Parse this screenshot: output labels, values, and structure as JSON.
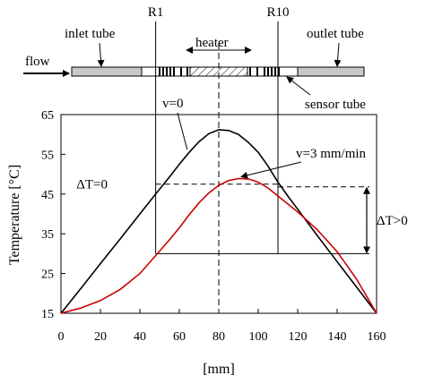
{
  "chart_data": {
    "type": "line",
    "xlabel": "[mm]",
    "ylabel": "Temperature [°C]",
    "xlim": [
      0,
      160
    ],
    "ylim": [
      15,
      65
    ],
    "x_ticks": [
      0,
      20,
      40,
      60,
      80,
      100,
      120,
      140,
      160
    ],
    "y_ticks": [
      15,
      25,
      35,
      45,
      55,
      65
    ],
    "series": [
      {
        "name": "v=0",
        "color": "#000000",
        "x": [
          0,
          10,
          20,
          30,
          40,
          48,
          55,
          60,
          65,
          70,
          75,
          80,
          85,
          90,
          95,
          100,
          105,
          110,
          115,
          120,
          130,
          140,
          150,
          160
        ],
        "y": [
          15,
          21.2,
          27.5,
          33.7,
          40,
          45,
          49.3,
          52.5,
          55.5,
          58.2,
          60.2,
          61.2,
          61,
          60,
          58,
          55.5,
          52,
          48,
          44.5,
          41.2,
          34.5,
          28,
          21.5,
          15
        ]
      },
      {
        "name": "v=3 mm/min",
        "color": "#cc0000",
        "x": [
          0,
          10,
          20,
          30,
          40,
          48,
          55,
          60,
          65,
          70,
          75,
          80,
          85,
          90,
          95,
          100,
          105,
          110,
          115,
          120,
          130,
          140,
          150,
          160
        ],
        "y": [
          15,
          16.3,
          18.2,
          21,
          25,
          29.5,
          33.5,
          36.5,
          39.8,
          42.8,
          45.3,
          47.2,
          48.4,
          48.9,
          48.8,
          48,
          46.5,
          44.5,
          42.5,
          40.5,
          36,
          30.5,
          23.5,
          15
        ]
      }
    ],
    "vertical_lines": [
      {
        "x": 48,
        "label": "R1"
      },
      {
        "x": 110,
        "label": "R10"
      }
    ],
    "center_line_x": 80,
    "annotations": [
      {
        "text": "v=0",
        "target": "v=0"
      },
      {
        "text": "v=3 mm/min",
        "target": "v=3 mm/min"
      },
      {
        "text": "ΔT=0",
        "y": 47.5
      },
      {
        "text": "ΔT>0",
        "from": 30,
        "to": 46.8
      }
    ]
  },
  "schematic": {
    "labels": {
      "inlet": "inlet tube",
      "heater": "heater",
      "outlet": "outlet tube",
      "flow": "flow",
      "sensor": "sensor tube"
    },
    "colors": {
      "tube": "#c8c8c8",
      "hatch": "#000000"
    }
  }
}
